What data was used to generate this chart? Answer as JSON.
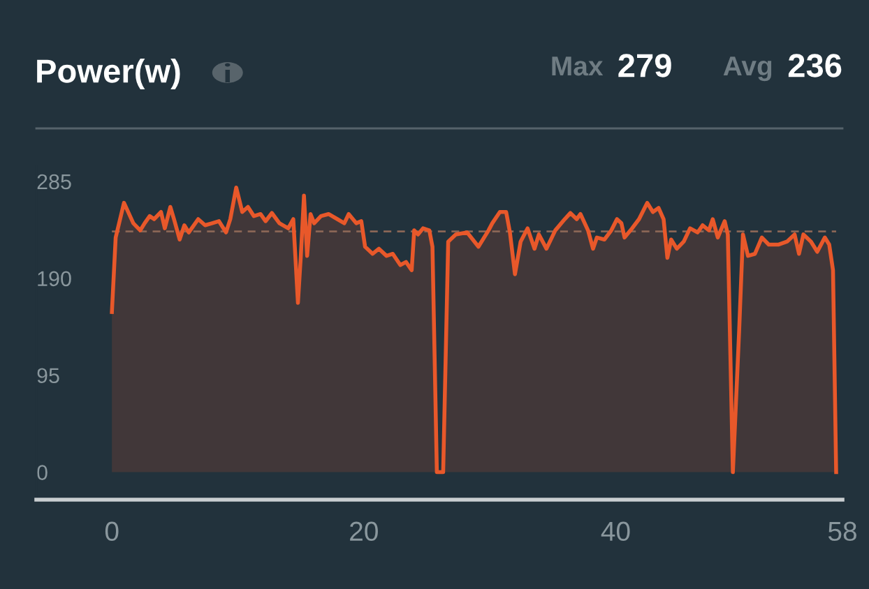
{
  "chart_data": {
    "type": "area",
    "title": "Power(w)",
    "annotations": [
      "Max",
      "279",
      "Avg",
      "236"
    ],
    "xlim": [
      -6,
      58
    ],
    "xticks": [
      0,
      20,
      40,
      58
    ],
    "ylim": [
      -27,
      300
    ],
    "yticks": [
      0,
      95,
      190,
      285
    ],
    "ref_lines": [
      {
        "axis": "y",
        "value": 236,
        "color": "#8a6656",
        "line_style": "dashed"
      }
    ],
    "series": [
      {
        "color": "#e8582a",
        "x": [
          0,
          0.3,
          0.96,
          1.7,
          2.25,
          2.6,
          3.0,
          3.35,
          3.9,
          4.2,
          4.64,
          4.93,
          5.38,
          5.75,
          6.1,
          6.85,
          7.4,
          7.96,
          8.5,
          9.06,
          9.4,
          9.87,
          10.35,
          10.8,
          11.27,
          11.8,
          12.2,
          12.7,
          13.3,
          14.0,
          14.4,
          14.77,
          15.0,
          15.25,
          15.5,
          15.77,
          16.06,
          16.6,
          17.2,
          17.9,
          18.45,
          18.8,
          19.4,
          19.8,
          20.1,
          20.7,
          21.2,
          21.8,
          22.3,
          22.9,
          23.35,
          23.8,
          24.0,
          24.3,
          24.7,
          25.2,
          25.45,
          25.8,
          26.3,
          26.7,
          27.3,
          28.2,
          29.1,
          29.9,
          30.2,
          30.8,
          31.3,
          31.6,
          32.0,
          32.45,
          33.0,
          33.55,
          33.9,
          34.5,
          35.2,
          35.95,
          36.4,
          36.9,
          37.2,
          37.8,
          38.2,
          38.5,
          39.1,
          39.65,
          40.1,
          40.45,
          40.7,
          41.3,
          41.85,
          42.5,
          42.95,
          43.4,
          43.8,
          44.1,
          44.4,
          44.85,
          45.4,
          45.9,
          46.5,
          46.9,
          47.4,
          47.7,
          48.1,
          48.65,
          48.9,
          49.3,
          49.8,
          50.1,
          50.5,
          51.05,
          51.6,
          52.15,
          52.9,
          53.6,
          54.2,
          54.55,
          54.9,
          55.5,
          56.0,
          56.6,
          56.95,
          57.25,
          57.5
        ],
        "values": [
          157,
          230,
          264,
          244,
          237,
          244,
          251,
          248,
          255,
          239,
          260,
          248,
          228,
          242,
          235,
          248,
          242,
          244,
          246,
          235,
          248,
          279,
          255,
          260,
          251,
          253,
          246,
          254,
          244,
          239,
          248,
          166,
          212,
          271,
          212,
          253,
          244,
          251,
          253,
          248,
          244,
          253,
          244,
          246,
          221,
          214,
          219,
          212,
          214,
          203,
          206,
          198,
          237,
          233,
          239,
          237,
          221,
          0,
          0,
          226,
          233,
          235,
          221,
          237,
          244,
          255,
          255,
          235,
          194,
          226,
          239,
          219,
          233,
          219,
          237,
          248,
          254,
          248,
          253,
          237,
          219,
          230,
          228,
          237,
          248,
          244,
          230,
          239,
          248,
          264,
          255,
          259,
          248,
          210,
          228,
          219,
          226,
          239,
          235,
          242,
          237,
          248,
          230,
          246,
          233,
          0,
          139,
          233,
          212,
          214,
          230,
          223,
          223,
          226,
          233,
          214,
          233,
          226,
          216,
          230,
          223,
          198,
          0
        ]
      }
    ]
  }
}
